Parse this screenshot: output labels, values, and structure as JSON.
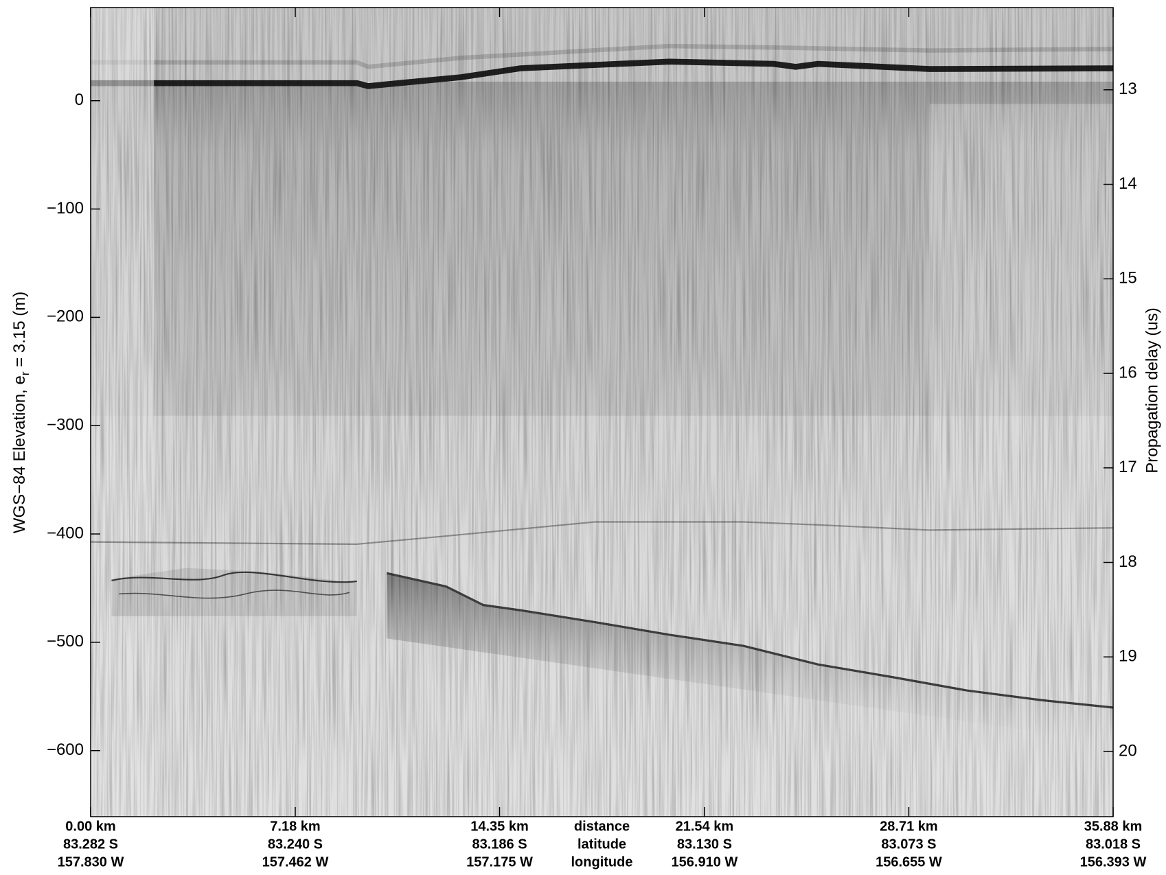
{
  "chart_data": {
    "type": "radargram",
    "y_label": {
      "text": "WGS−84 Elevation, e",
      "subscript": "r",
      "suffix": " = 3.15 (m)"
    },
    "y2_label": "Propagation delay (us)",
    "ylim": [
      -661,
      86
    ],
    "yticks": [
      {
        "value": 0,
        "label": "0"
      },
      {
        "value": -100,
        "label": "−100"
      },
      {
        "value": -200,
        "label": "−200"
      },
      {
        "value": -300,
        "label": "−300"
      },
      {
        "value": -400,
        "label": "−400"
      },
      {
        "value": -500,
        "label": "−500"
      },
      {
        "value": -600,
        "label": "−600"
      }
    ],
    "y2lim": [
      20.69,
      12.13
    ],
    "y2ticks": [
      13,
      14,
      15,
      16,
      17,
      18,
      19,
      20
    ],
    "xlim": [
      0,
      35.88
    ],
    "x_row_labels": [
      "distance",
      "latitude",
      "longitude"
    ],
    "xticks": [
      {
        "value": 0,
        "label": "0.00 km",
        "latitude": "83.282 S",
        "longitude": "157.830 W"
      },
      {
        "value": 7.18,
        "label": "7.18 km",
        "latitude": "83.240 S",
        "longitude": "157.462 W"
      },
      {
        "value": 14.35,
        "label": "14.35 km",
        "latitude": "83.186 S",
        "longitude": "157.175 W"
      },
      {
        "value": 21.54,
        "label": "21.54 km",
        "latitude": "83.130 S",
        "longitude": "156.910 W"
      },
      {
        "value": 28.71,
        "label": "28.71 km",
        "latitude": "83.073 S",
        "longitude": "156.655 W"
      },
      {
        "value": 35.88,
        "label": "35.88 km",
        "latitude": "83.018 S",
        "longitude": "156.393 W"
      }
    ]
  }
}
